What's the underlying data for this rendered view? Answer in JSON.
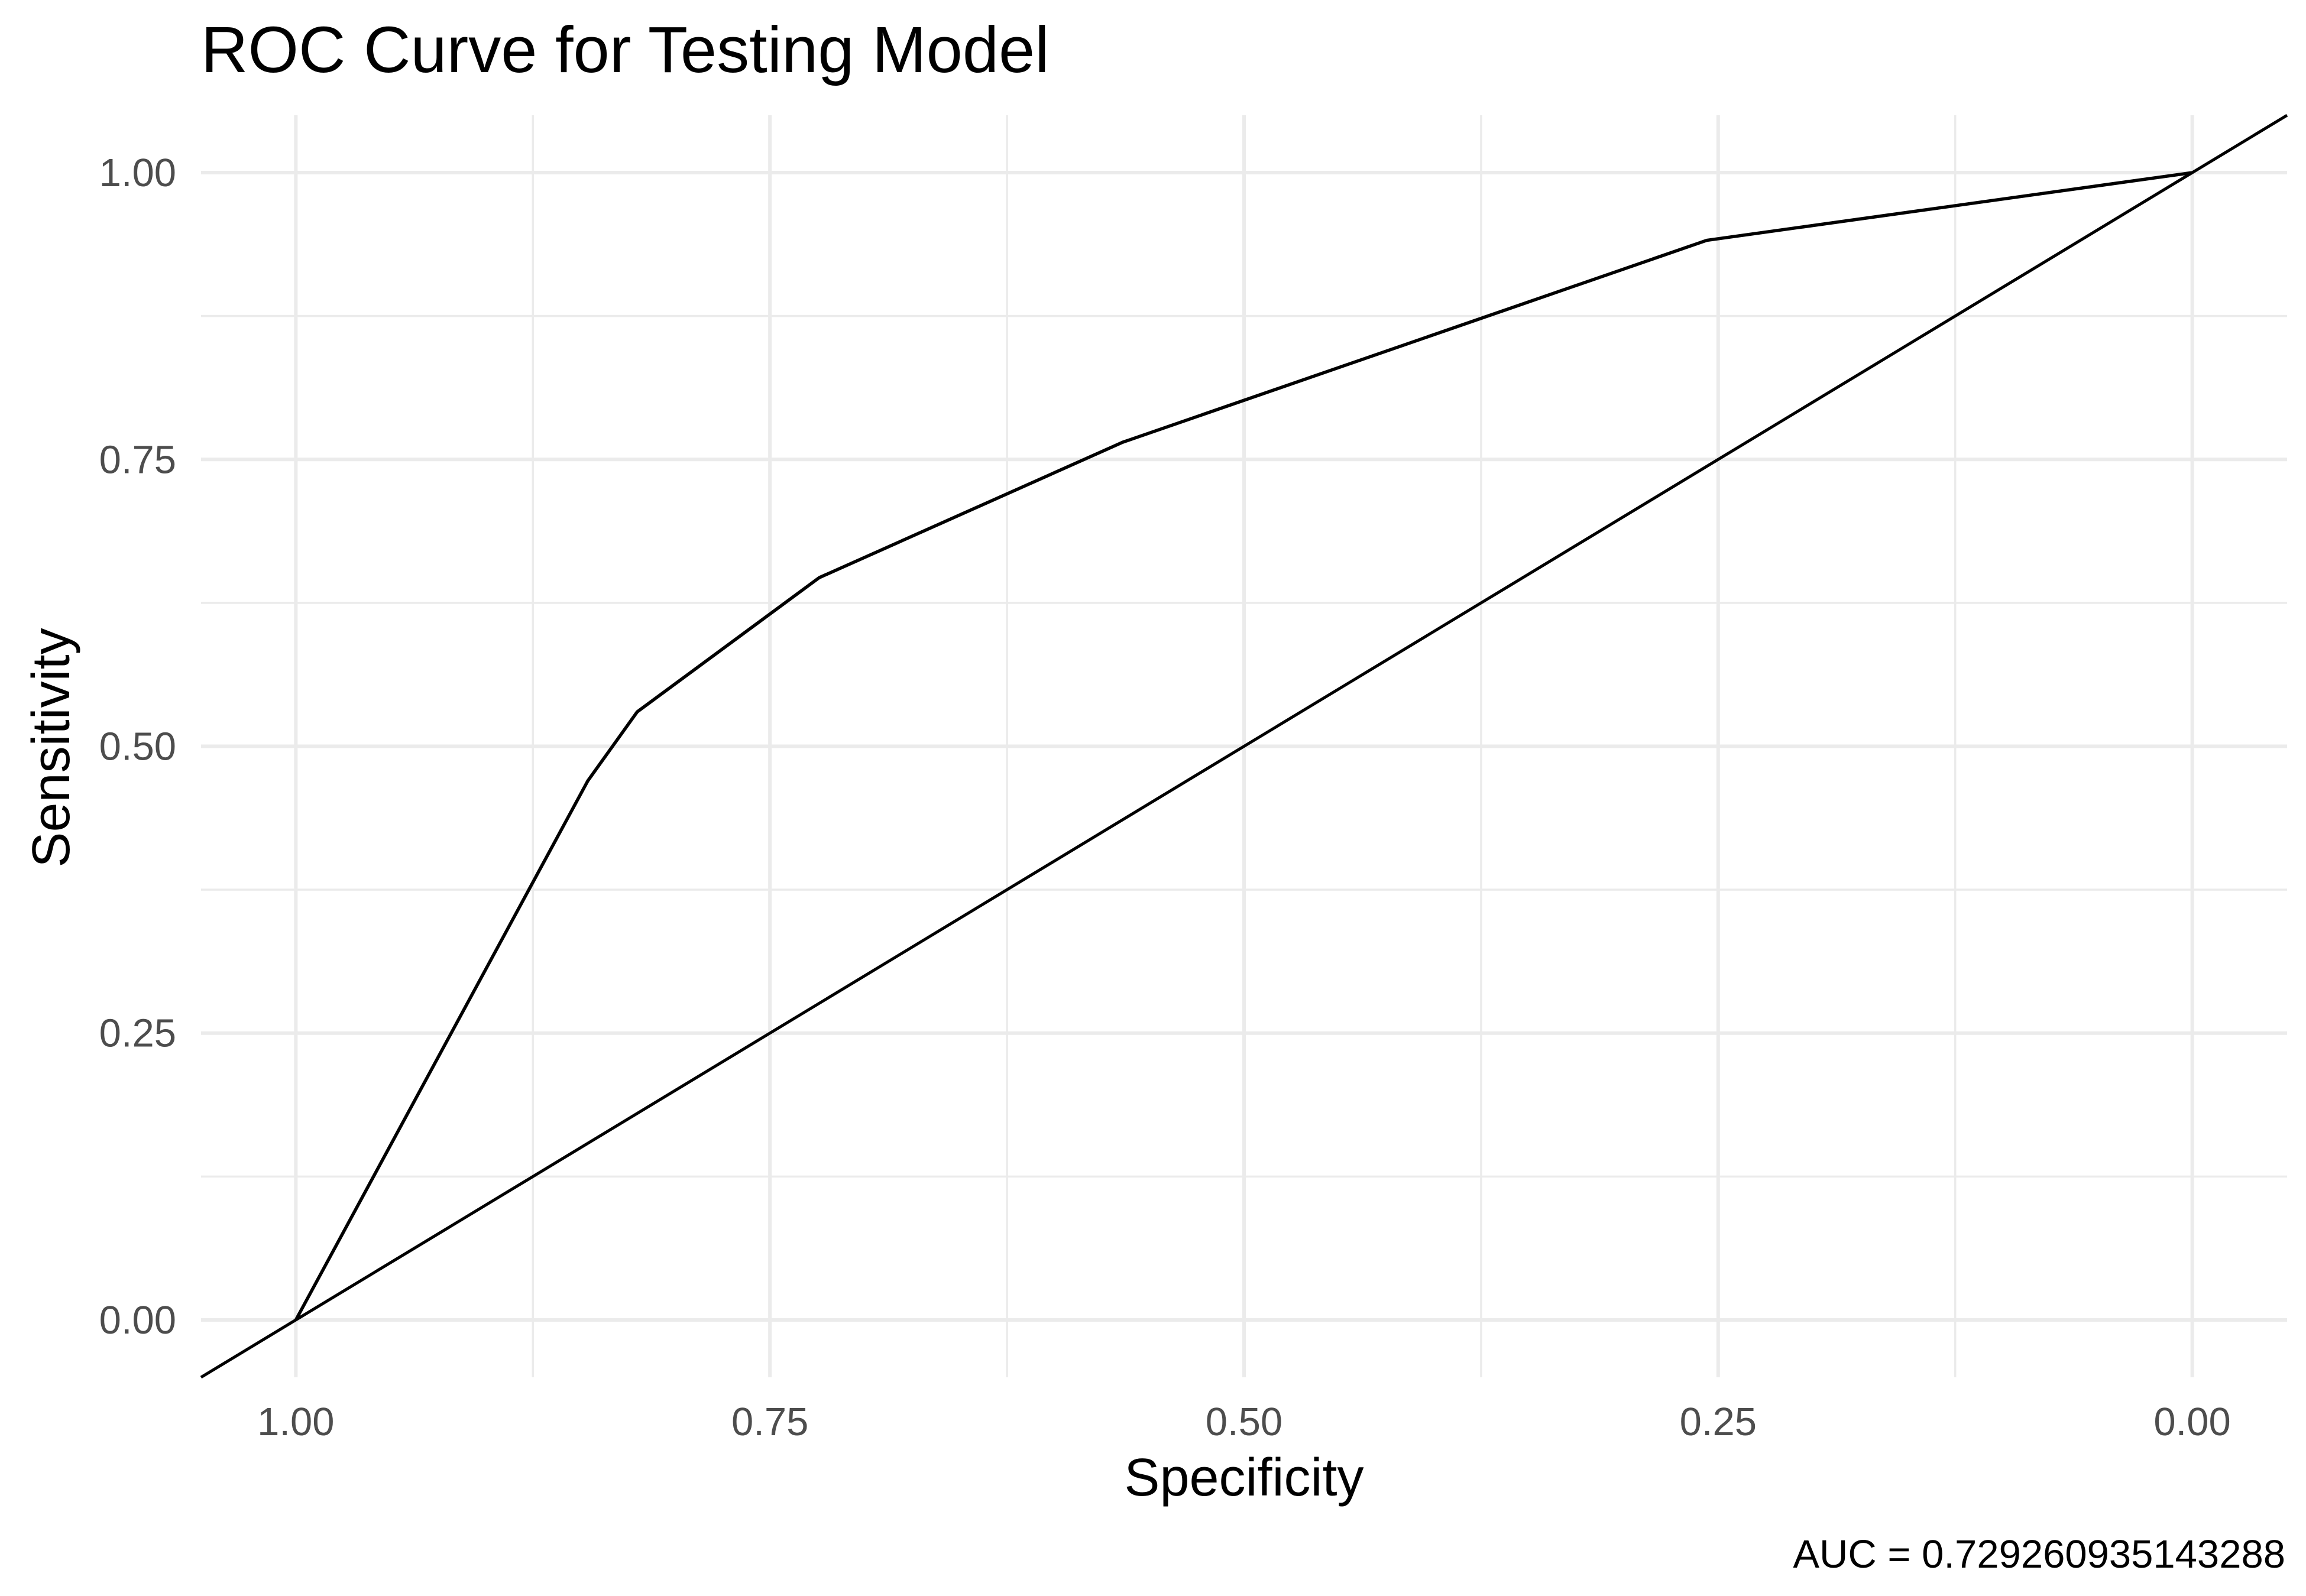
{
  "chart_data": {
    "type": "line",
    "title": "ROC Curve for Testing Model",
    "xlabel": "Specificity",
    "ylabel": "Sensitivity",
    "caption": "AUC = 0.729260935143288",
    "x_reversed": true,
    "xlim": [
      1.05,
      -0.05
    ],
    "ylim": [
      -0.05,
      1.05
    ],
    "x_ticks": [
      1.0,
      0.75,
      0.5,
      0.25,
      0.0
    ],
    "x_tick_labels": [
      "1.00",
      "0.75",
      "0.50",
      "0.25",
      "0.00"
    ],
    "y_ticks": [
      0.0,
      0.25,
      0.5,
      0.75,
      1.0
    ],
    "y_tick_labels": [
      "0.00",
      "0.25",
      "0.50",
      "0.75",
      "1.00"
    ],
    "x_minor_ticks": [
      0.875,
      0.625,
      0.375,
      0.125
    ],
    "y_minor_ticks": [
      0.125,
      0.375,
      0.625,
      0.875
    ],
    "grid": true,
    "series": [
      {
        "specificity": [
          1.0,
          0.846,
          0.82,
          0.724,
          0.564,
          0.256,
          0.0
        ],
        "sensitivity": [
          0.0,
          0.47,
          0.53,
          0.647,
          0.765,
          0.941,
          1.0
        ],
        "color": "#000000"
      }
    ],
    "reference_line": {
      "intercept": 1,
      "slope": -1,
      "color": "#000000"
    }
  }
}
